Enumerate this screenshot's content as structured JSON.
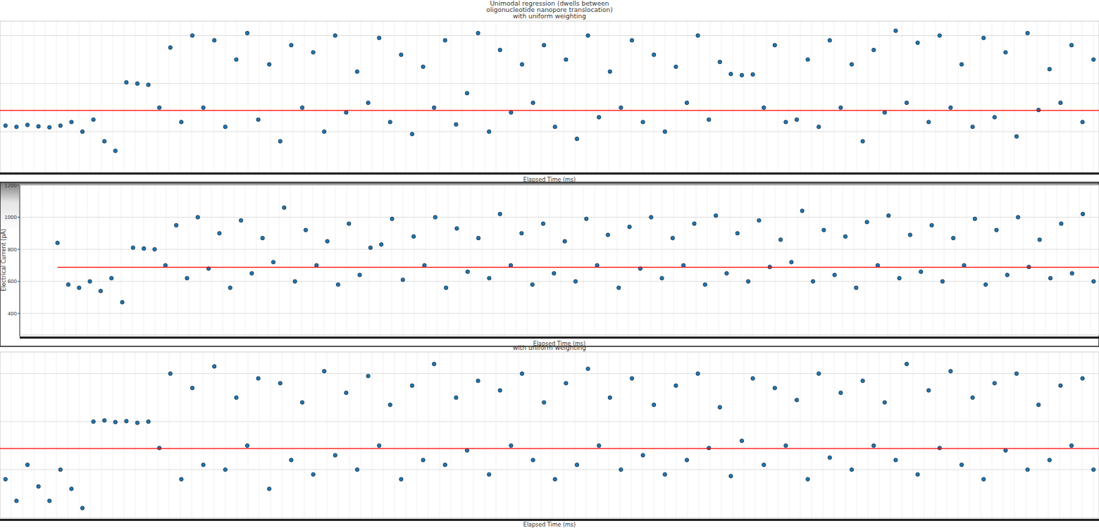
{
  "chart_data": [
    {
      "type": "scatter",
      "title": "Unimodal regression (dwells between\noligonucleotide nanopore translocation)\nwith uniform weighting",
      "x_label": "Elapsed Time (ms)",
      "xlim": [
        0,
        100
      ],
      "ylim": [
        430,
        1060
      ],
      "yticks": [
        600,
        800,
        1000
      ],
      "grid": true,
      "tick_labels": false,
      "series": [
        {
          "type": "scatter",
          "color": "#1f77b4",
          "marker": "o",
          "x": [
            0.5,
            1.5,
            2.5,
            3.5,
            4.5,
            5.5,
            6.5,
            7.5,
            8.5,
            9.5,
            10.5,
            11.5,
            12.5,
            13.5,
            14.5,
            15.5,
            16.5,
            17.5,
            18.5,
            19.5,
            20.5,
            21.5,
            22.5,
            23.5,
            24.5,
            25.5,
            26.5,
            27.5,
            28.5,
            29.5,
            30.5,
            31.5,
            32.5,
            33.5,
            34.5,
            35.5,
            36.5,
            37.5,
            38.5,
            39.5,
            40.5,
            41.5,
            42.5,
            43.5,
            44.5,
            45.5,
            46.5,
            47.5,
            48.5,
            49.5,
            50.5,
            51.5,
            52.5,
            53.5,
            54.5,
            55.5,
            56.5,
            57.5,
            58.5,
            59.5,
            60.5,
            61.5,
            62.5,
            63.5,
            64.5,
            65.5,
            66.5,
            67.5,
            68.5,
            69.5,
            70.5,
            71.5,
            72.5,
            73.5,
            74.5,
            75.5,
            76.5,
            77.5,
            78.5,
            79.5,
            80.5,
            81.5,
            82.5,
            83.5,
            84.5,
            85.5,
            86.5,
            87.5,
            88.5,
            89.5,
            90.5,
            91.5,
            92.5,
            93.5,
            94.5,
            95.5,
            96.5,
            97.5,
            98.5,
            99.5
          ],
          "values": [
            625,
            620,
            628,
            622,
            618,
            625,
            640,
            600,
            650,
            560,
            520,
            805,
            800,
            795,
            700,
            950,
            640,
            1000,
            700,
            980,
            620,
            900,
            1010,
            650,
            880,
            560,
            960,
            700,
            930,
            600,
            1000,
            680,
            850,
            720,
            990,
            640,
            920,
            590,
            870,
            700,
            980,
            630,
            760,
            1010,
            600,
            940,
            680,
            880,
            720,
            960,
            620,
            900,
            570,
            1000,
            660,
            850,
            700,
            980,
            640,
            920,
            600,
            870,
            720,
            1000,
            650,
            890,
            840,
            835,
            838,
            700,
            960,
            640,
            650,
            900,
            620,
            980,
            700,
            880,
            560,
            940,
            680,
            1020,
            720,
            970,
            640,
            1000,
            700,
            880,
            620,
            990,
            660,
            930,
            580,
            1010,
            690,
            860,
            720,
            960,
            640,
            900
          ]
        },
        {
          "type": "line",
          "color": "#ff0000",
          "line_style": "solid",
          "x": [
            0,
            100
          ],
          "values": [
            688,
            688
          ]
        }
      ]
    },
    {
      "type": "scatter",
      "y_label": "Electrical Current (pA)",
      "x_label": "Elapsed Time (ms)",
      "xlim": [
        0,
        100
      ],
      "ylim": [
        265,
        1200
      ],
      "yticks": [
        400,
        600,
        800,
        1000,
        1200
      ],
      "grid": true,
      "tick_labels": "y",
      "series": [
        {
          "type": "scatter",
          "color": "#1f77b4",
          "marker": "o",
          "x": [
            3.5,
            4.5,
            5.5,
            6.5,
            7.5,
            8.5,
            9.5,
            10.5,
            11.5,
            12.5,
            13.5,
            14.5,
            15.5,
            16.5,
            17.5,
            18.5,
            19.5,
            20.5,
            21.5,
            22.5,
            23.5,
            24.5,
            25.5,
            26.5,
            27.5,
            28.5,
            29.5,
            30.5,
            31.5,
            32.5,
            33.5,
            34.5,
            35.5,
            36.5,
            37.5,
            38.5,
            39.5,
            40.5,
            41.5,
            42.5,
            43.5,
            44.5,
            45.5,
            46.5,
            47.5,
            48.5,
            49.5,
            50.5,
            51.5,
            52.5,
            53.5,
            54.5,
            55.5,
            56.5,
            57.5,
            58.5,
            59.5,
            60.5,
            61.5,
            62.5,
            63.5,
            64.5,
            65.5,
            66.5,
            67.5,
            68.5,
            69.5,
            70.5,
            71.5,
            72.5,
            73.5,
            74.5,
            75.5,
            76.5,
            77.5,
            78.5,
            79.5,
            80.5,
            81.5,
            82.5,
            83.5,
            84.5,
            85.5,
            86.5,
            87.5,
            88.5,
            89.5,
            90.5,
            91.5,
            92.5,
            93.5,
            94.5,
            95.5,
            96.5,
            97.5,
            98.5,
            99.5
          ],
          "values": [
            840,
            580,
            560,
            600,
            540,
            620,
            470,
            810,
            805,
            800,
            700,
            950,
            620,
            1000,
            680,
            900,
            560,
            980,
            650,
            870,
            720,
            1060,
            600,
            920,
            700,
            850,
            580,
            960,
            640,
            810,
            830,
            990,
            610,
            880,
            700,
            1000,
            560,
            930,
            660,
            870,
            620,
            1020,
            700,
            900,
            580,
            960,
            650,
            850,
            600,
            990,
            700,
            890,
            560,
            940,
            680,
            1000,
            620,
            870,
            700,
            960,
            580,
            1010,
            650,
            900,
            600,
            980,
            690,
            860,
            720,
            1040,
            600,
            920,
            640,
            880,
            560,
            970,
            700,
            1010,
            620,
            890,
            660,
            950,
            600,
            870,
            700,
            990,
            580,
            920,
            640,
            1000,
            690,
            860,
            620,
            960,
            650,
            1020,
            600
          ]
        },
        {
          "type": "line",
          "color": "#ff0000",
          "line_style": "solid",
          "x": [
            3.5,
            100
          ],
          "values": [
            688,
            688
          ]
        }
      ]
    },
    {
      "type": "scatter",
      "title": "with uniform weighting",
      "x_label": "Elapsed Time (ms)",
      "xlim": [
        0,
        100
      ],
      "ylim": [
        395,
        1090
      ],
      "yticks": [
        400,
        600,
        800,
        1000
      ],
      "grid": true,
      "tick_labels": false,
      "series": [
        {
          "type": "scatter",
          "color": "#1f77b4",
          "marker": "o",
          "x": [
            0.5,
            1.5,
            2.5,
            3.5,
            4.5,
            5.5,
            6.5,
            7.5,
            8.5,
            9.5,
            10.5,
            11.5,
            12.5,
            13.5,
            14.5,
            15.5,
            16.5,
            17.5,
            18.5,
            19.5,
            20.5,
            21.5,
            22.5,
            23.5,
            24.5,
            25.5,
            26.5,
            27.5,
            28.5,
            29.5,
            30.5,
            31.5,
            32.5,
            33.5,
            34.5,
            35.5,
            36.5,
            37.5,
            38.5,
            39.5,
            40.5,
            41.5,
            42.5,
            43.5,
            44.5,
            45.5,
            46.5,
            47.5,
            48.5,
            49.5,
            50.5,
            51.5,
            52.5,
            53.5,
            54.5,
            55.5,
            56.5,
            57.5,
            58.5,
            59.5,
            60.5,
            61.5,
            62.5,
            63.5,
            64.5,
            65.5,
            66.5,
            67.5,
            68.5,
            69.5,
            70.5,
            71.5,
            72.5,
            73.5,
            74.5,
            75.5,
            76.5,
            77.5,
            78.5,
            79.5,
            80.5,
            81.5,
            82.5,
            83.5,
            84.5,
            85.5,
            86.5,
            87.5,
            88.5,
            89.5,
            90.5,
            91.5,
            92.5,
            93.5,
            94.5,
            95.5,
            96.5,
            97.5,
            98.5,
            99.5
          ],
          "values": [
            560,
            470,
            620,
            530,
            470,
            600,
            520,
            440,
            800,
            805,
            798,
            802,
            795,
            800,
            690,
            1000,
            560,
            940,
            620,
            1030,
            600,
            900,
            700,
            980,
            520,
            960,
            640,
            880,
            580,
            1010,
            660,
            920,
            600,
            990,
            700,
            870,
            560,
            950,
            640,
            1040,
            620,
            900,
            680,
            970,
            580,
            930,
            700,
            1000,
            640,
            880,
            560,
            960,
            620,
            1020,
            700,
            900,
            600,
            980,
            660,
            870,
            580,
            950,
            640,
            1000,
            690,
            860,
            573,
            720,
            980,
            620,
            940,
            700,
            890,
            560,
            1000,
            650,
            920,
            600,
            970,
            700,
            880,
            640,
            1040,
            580,
            930,
            690,
            1010,
            620,
            900,
            560,
            960,
            680,
            1000,
            600,
            870,
            640,
            950,
            700,
            980,
            600
          ]
        },
        {
          "type": "line",
          "color": "#ff0000",
          "line_style": "solid",
          "x": [
            0,
            100
          ],
          "values": [
            688,
            688
          ]
        }
      ]
    }
  ]
}
